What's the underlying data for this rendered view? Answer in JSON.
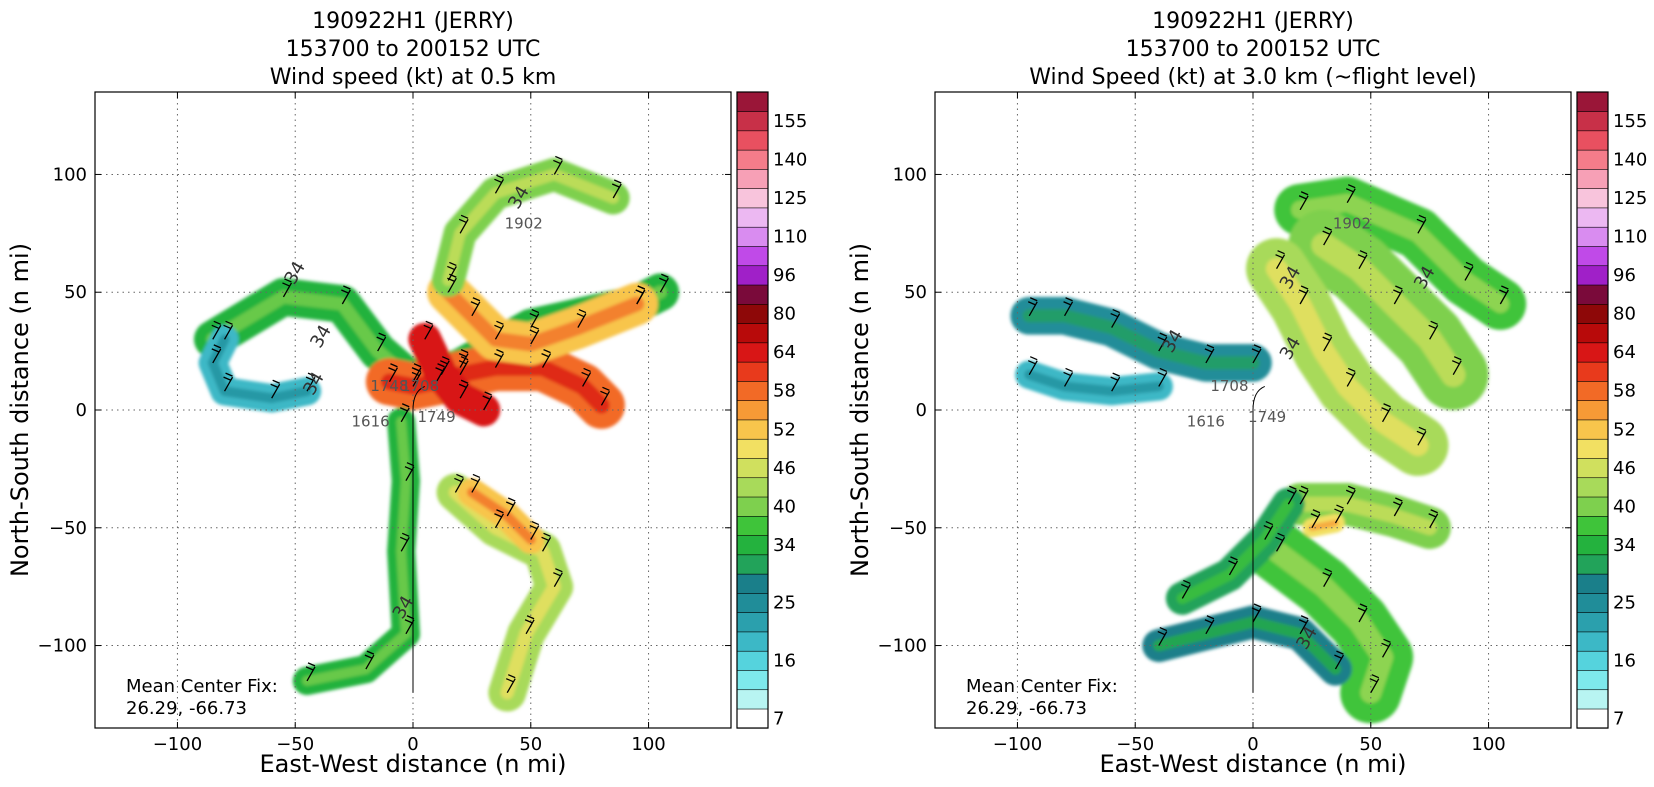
{
  "colorbar": {
    "levels": [
      7,
      10,
      13,
      16,
      19,
      22,
      25,
      28,
      31,
      34,
      37,
      40,
      43,
      46,
      49,
      52,
      55,
      58,
      61,
      64,
      72,
      80,
      88,
      96,
      103,
      110,
      118,
      125,
      133,
      140,
      148,
      155,
      163
    ],
    "tick_labels": [
      "7",
      "16",
      "25",
      "34",
      "40",
      "46",
      "52",
      "58",
      "64",
      "80",
      "96",
      "110",
      "125",
      "140",
      "155"
    ],
    "colors": [
      "#ffffff",
      "#b8f4f2",
      "#7ee9ec",
      "#55d3dd",
      "#3cb8c6",
      "#2ba0ad",
      "#208d99",
      "#1a7f8a",
      "#22a35a",
      "#24b23e",
      "#3fc43a",
      "#7ed04e",
      "#a8da5a",
      "#d0e05e",
      "#f2e062",
      "#f8c54c",
      "#f79a36",
      "#f26a26",
      "#e83a1c",
      "#d81616",
      "#b80a0a",
      "#8e0808",
      "#7a0a3a",
      "#a020c8",
      "#c04ae8",
      "#d98cf0",
      "#ecb8f2",
      "#f8c4dc",
      "#f7a0b6",
      "#f47c8a",
      "#e85060",
      "#c83048",
      "#9a1638"
    ]
  },
  "chart_data": [
    {
      "type": "heatmap",
      "title": "190922H1 (JERRY)\n153700 to 200152 UTC\nWind speed (kt) at 0.5 km",
      "title_lines": [
        "190922H1 (JERRY)",
        "153700 to 200152 UTC",
        "Wind speed (kt) at 0.5 km"
      ],
      "xlabel": "East-West distance (n mi)",
      "ylabel": "North-South distance (n mi)",
      "xlim": [
        -135,
        135
      ],
      "ylim": [
        -135,
        135
      ],
      "xticks": [
        -100,
        -50,
        0,
        50,
        100
      ],
      "yticks": [
        -100,
        -50,
        0,
        50,
        100
      ],
      "grid": true,
      "annotation_lines": [
        "Mean Center Fix:",
        "26.29, -66.73"
      ],
      "flight_leg_labels": [
        {
          "text": "1616",
          "x": -18,
          "y": -7
        },
        {
          "text": "1749",
          "x": 10,
          "y": -5
        },
        {
          "text": "1708",
          "x": 3,
          "y": 8
        },
        {
          "text": "1748",
          "x": -10,
          "y": 8
        },
        {
          "text": "1902",
          "x": 47,
          "y": 77
        }
      ],
      "contour_labels": [
        {
          "text": "34",
          "x": -48,
          "y": 57
        },
        {
          "text": "34",
          "x": -37,
          "y": 30
        },
        {
          "text": "34",
          "x": -40,
          "y": 10
        },
        {
          "text": "34",
          "x": 47,
          "y": 89
        },
        {
          "text": "34",
          "x": -2,
          "y": -85
        }
      ],
      "swaths": [
        {
          "points": [
            [
              -85,
              30
            ],
            [
              -55,
              48
            ],
            [
              -30,
              45
            ],
            [
              -15,
              25
            ],
            [
              0,
              12
            ],
            [
              20,
              18
            ],
            [
              50,
              35
            ],
            [
              95,
              45
            ],
            [
              105,
              50
            ]
          ],
          "width": 16,
          "speed": 34
        },
        {
          "points": [
            [
              -10,
              12
            ],
            [
              0,
              10
            ],
            [
              10,
              12
            ],
            [
              20,
              15
            ],
            [
              35,
              18
            ],
            [
              55,
              18
            ],
            [
              72,
              10
            ],
            [
              80,
              2
            ]
          ],
          "width": 20,
          "speed": 58
        },
        {
          "points": [
            [
              15,
              50
            ],
            [
              25,
              40
            ],
            [
              35,
              30
            ],
            [
              50,
              28
            ],
            [
              70,
              35
            ],
            [
              95,
              45
            ]
          ],
          "width": 18,
          "speed": 52
        },
        {
          "points": [
            [
              5,
              30
            ],
            [
              12,
              15
            ],
            [
              20,
              5
            ],
            [
              30,
              0
            ]
          ],
          "width": 14,
          "speed": 64
        },
        {
          "points": [
            [
              15,
              55
            ],
            [
              20,
              75
            ],
            [
              35,
              92
            ],
            [
              60,
              100
            ],
            [
              85,
              90
            ]
          ],
          "width": 14,
          "speed": 40
        },
        {
          "points": [
            [
              -5,
              -5
            ],
            [
              -3,
              -30
            ],
            [
              -5,
              -60
            ],
            [
              -3,
              -95
            ],
            [
              -20,
              -110
            ],
            [
              -45,
              -115
            ]
          ],
          "width": 12,
          "speed": 34
        },
        {
          "points": [
            [
              18,
              -35
            ],
            [
              35,
              -50
            ],
            [
              55,
              -60
            ],
            [
              60,
              -75
            ],
            [
              48,
              -95
            ],
            [
              40,
              -120
            ]
          ],
          "width": 16,
          "speed": 43
        },
        {
          "points": [
            [
              25,
              -35
            ],
            [
              40,
              -45
            ],
            [
              50,
              -55
            ]
          ],
          "width": 12,
          "speed": 52
        },
        {
          "points": [
            [
              -80,
              30
            ],
            [
              -85,
              20
            ],
            [
              -80,
              8
            ],
            [
              -60,
              5
            ],
            [
              -45,
              8
            ]
          ],
          "width": 12,
          "speed": 19
        }
      ]
    },
    {
      "type": "heatmap",
      "title": "190922H1 (JERRY)\n153700 to 200152 UTC\nWind Speed (kt) at 3.0 km (~flight level)",
      "title_lines": [
        "190922H1 (JERRY)",
        "153700 to 200152 UTC",
        "Wind Speed (kt) at 3.0 km (~flight level)"
      ],
      "xlabel": "East-West distance (n mi)",
      "ylabel": "North-South distance (n mi)",
      "xlim": [
        -135,
        135
      ],
      "ylim": [
        -135,
        135
      ],
      "xticks": [
        -100,
        -50,
        0,
        50,
        100
      ],
      "yticks": [
        -100,
        -50,
        0,
        50,
        100
      ],
      "grid": true,
      "annotation_lines": [
        "Mean Center Fix:",
        "26.29, -66.73"
      ],
      "flight_leg_labels": [
        {
          "text": "1616",
          "x": -20,
          "y": -7
        },
        {
          "text": "1749",
          "x": 6,
          "y": -5
        },
        {
          "text": "1902",
          "x": 42,
          "y": 77
        },
        {
          "text": "1708",
          "x": -10,
          "y": 8
        }
      ],
      "contour_labels": [
        {
          "text": "34",
          "x": -32,
          "y": 28
        },
        {
          "text": "34",
          "x": 18,
          "y": 55
        },
        {
          "text": "34",
          "x": 75,
          "y": 55
        },
        {
          "text": "34",
          "x": 18,
          "y": 25
        },
        {
          "text": "34",
          "x": 25,
          "y": -98
        }
      ],
      "swaths": [
        {
          "points": [
            [
              20,
              85
            ],
            [
              40,
              88
            ],
            [
              70,
              75
            ],
            [
              90,
              55
            ],
            [
              105,
              45
            ]
          ],
          "width": 22,
          "speed": 37
        },
        {
          "points": [
            [
              30,
              70
            ],
            [
              45,
              60
            ],
            [
              60,
              45
            ],
            [
              75,
              30
            ],
            [
              85,
              15
            ]
          ],
          "width": 30,
          "speed": 40
        },
        {
          "points": [
            [
              10,
              60
            ],
            [
              20,
              45
            ],
            [
              30,
              25
            ],
            [
              40,
              10
            ],
            [
              55,
              -5
            ],
            [
              70,
              -15
            ]
          ],
          "width": 26,
          "speed": 43
        },
        {
          "points": [
            [
              -95,
              40
            ],
            [
              -80,
              40
            ],
            [
              -60,
              35
            ],
            [
              -40,
              25
            ],
            [
              -20,
              20
            ],
            [
              0,
              20
            ]
          ],
          "width": 16,
          "speed": 25
        },
        {
          "points": [
            [
              -95,
              15
            ],
            [
              -80,
              10
            ],
            [
              -60,
              8
            ],
            [
              -40,
              10
            ]
          ],
          "width": 12,
          "speed": 19
        },
        {
          "points": [
            [
              20,
              -40
            ],
            [
              40,
              -40
            ],
            [
              60,
              -45
            ],
            [
              75,
              -50
            ]
          ],
          "width": 18,
          "speed": 40
        },
        {
          "points": [
            [
              25,
              -50
            ],
            [
              35,
              -48
            ]
          ],
          "width": 8,
          "speed": 49
        },
        {
          "points": [
            [
              10,
              -60
            ],
            [
              30,
              -75
            ],
            [
              45,
              -90
            ],
            [
              55,
              -105
            ],
            [
              50,
              -120
            ]
          ],
          "width": 26,
          "speed": 37
        },
        {
          "points": [
            [
              -40,
              -100
            ],
            [
              -20,
              -95
            ],
            [
              0,
              -90
            ],
            [
              20,
              -95
            ],
            [
              35,
              -110
            ]
          ],
          "width": 14,
          "speed": 28
        },
        {
          "points": [
            [
              -30,
              -80
            ],
            [
              -10,
              -70
            ],
            [
              5,
              -55
            ],
            [
              15,
              -40
            ]
          ],
          "width": 14,
          "speed": 31
        }
      ]
    }
  ]
}
